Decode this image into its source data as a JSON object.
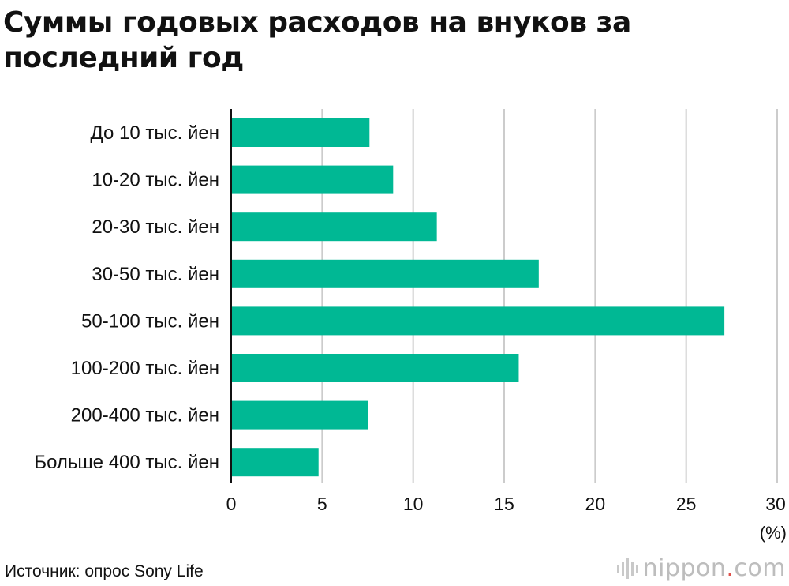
{
  "chart_data": {
    "type": "bar",
    "orientation": "horizontal",
    "title": "Суммы годовых расходов на внуков за последний год",
    "categories": [
      "До 10 тыс. йен",
      "10-20 тыс. йен",
      "20-30 тыс. йен",
      "30-50 тыс. йен",
      "50-100 тыс. йен",
      "100-200 тыс. йен",
      "200-400 тыс. йен",
      "Больше 400 тыс. йен"
    ],
    "values": [
      7.6,
      8.9,
      11.3,
      16.9,
      27.1,
      15.8,
      7.5,
      4.8
    ],
    "xlim": [
      0,
      30
    ],
    "xticks": [
      "0",
      "5",
      "10",
      "15",
      "20",
      "25",
      "30"
    ],
    "unit": "(%)",
    "grid": true,
    "bar_color": "#00b894"
  },
  "footer": {
    "source": "Источник: опрос Sony Life",
    "brand_main": "nippon",
    "brand_dot": ".",
    "brand_tld": "com"
  }
}
